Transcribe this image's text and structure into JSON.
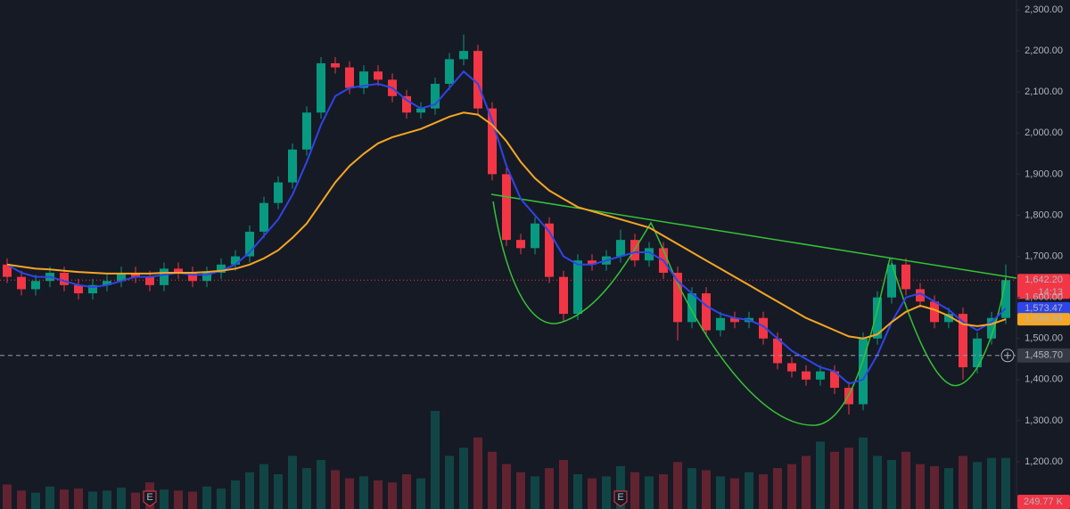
{
  "chart_data": {
    "type": "candlestick",
    "open": [
      1680,
      1650,
      1620,
      1640,
      1660,
      1630,
      1610,
      1630,
      1640,
      1660,
      1650,
      1630,
      1670,
      1660,
      1640,
      1660,
      1680,
      1700,
      1760,
      1830,
      1880,
      1960,
      2050,
      2170,
      2160,
      2110,
      2150,
      2130,
      2090,
      2050,
      2060,
      2120,
      2180,
      2200,
      2060,
      1900,
      1740,
      1720,
      1780,
      1650,
      1560,
      1690,
      1680,
      1700,
      1740,
      1690,
      1720,
      1660,
      1540,
      1610,
      1520,
      1550,
      1540,
      1550,
      1500,
      1440,
      1420,
      1400,
      1420,
      1380,
      1340,
      1500,
      1600,
      1680,
      1620,
      1590,
      1540,
      1560,
      1430,
      1500,
      1550
    ],
    "high": [
      1695,
      1665,
      1655,
      1675,
      1675,
      1645,
      1645,
      1655,
      1675,
      1675,
      1665,
      1685,
      1685,
      1675,
      1675,
      1695,
      1715,
      1775,
      1845,
      1895,
      1975,
      2065,
      2185,
      2185,
      2175,
      2165,
      2165,
      2145,
      2105,
      2075,
      2135,
      2195,
      2240,
      2215,
      2075,
      1915,
      1755,
      1795,
      1795,
      1665,
      1705,
      1705,
      1715,
      1765,
      1755,
      1735,
      1735,
      1675,
      1625,
      1625,
      1565,
      1565,
      1565,
      1565,
      1515,
      1455,
      1435,
      1435,
      1435,
      1395,
      1515,
      1615,
      1695,
      1695,
      1635,
      1605,
      1575,
      1575,
      1515,
      1565,
      1680
    ],
    "low": [
      1635,
      1605,
      1605,
      1625,
      1615,
      1595,
      1595,
      1615,
      1625,
      1635,
      1615,
      1615,
      1645,
      1625,
      1625,
      1645,
      1665,
      1685,
      1745,
      1815,
      1865,
      1945,
      2035,
      2145,
      2095,
      2095,
      2115,
      2075,
      2035,
      2035,
      2045,
      2105,
      2165,
      2045,
      1885,
      1725,
      1705,
      1705,
      1635,
      1540,
      1545,
      1665,
      1665,
      1685,
      1675,
      1675,
      1645,
      1495,
      1525,
      1505,
      1505,
      1525,
      1525,
      1485,
      1425,
      1405,
      1385,
      1385,
      1365,
      1315,
      1325,
      1485,
      1585,
      1605,
      1575,
      1525,
      1525,
      1400,
      1415,
      1485,
      1535
    ],
    "close": [
      1650,
      1620,
      1640,
      1660,
      1630,
      1610,
      1630,
      1640,
      1660,
      1650,
      1630,
      1670,
      1660,
      1640,
      1660,
      1680,
      1700,
      1760,
      1830,
      1880,
      1960,
      2050,
      2170,
      2160,
      2110,
      2150,
      2130,
      2090,
      2050,
      2060,
      2120,
      2180,
      2200,
      2060,
      1900,
      1740,
      1720,
      1780,
      1650,
      1560,
      1690,
      1680,
      1700,
      1740,
      1690,
      1720,
      1660,
      1540,
      1610,
      1520,
      1550,
      1540,
      1550,
      1500,
      1440,
      1420,
      1400,
      1420,
      1380,
      1340,
      1500,
      1600,
      1680,
      1620,
      1590,
      1540,
      1560,
      1430,
      1500,
      1550,
      1642.2
    ],
    "volume": [
      120000,
      90000,
      80000,
      110000,
      95000,
      100000,
      85000,
      90000,
      105000,
      80000,
      130000,
      95000,
      90000,
      85000,
      110000,
      100000,
      140000,
      180000,
      220000,
      170000,
      260000,
      200000,
      240000,
      190000,
      150000,
      160000,
      140000,
      130000,
      170000,
      150000,
      480000,
      260000,
      300000,
      350000,
      280000,
      220000,
      180000,
      160000,
      200000,
      240000,
      170000,
      150000,
      160000,
      210000,
      180000,
      160000,
      170000,
      230000,
      200000,
      190000,
      160000,
      150000,
      180000,
      170000,
      200000,
      220000,
      260000,
      330000,
      280000,
      300000,
      350000,
      260000,
      240000,
      280000,
      220000,
      210000,
      200000,
      260000,
      230000,
      250000,
      249770
    ],
    "volume_last_label": "249.77 K",
    "last_price_label": "1,642.20",
    "countdown": "14:13",
    "up_color": "#089981",
    "down_color": "#f23645",
    "series": [
      {
        "color": "#2f45e8",
        "last_label": "1,573.47",
        "values": [
          1680,
          1660,
          1650,
          1650,
          1640,
          1630,
          1625,
          1630,
          1640,
          1650,
          1650,
          1655,
          1660,
          1655,
          1655,
          1665,
          1680,
          1710,
          1750,
          1790,
          1850,
          1930,
          2020,
          2090,
          2110,
          2115,
          2120,
          2110,
          2080,
          2060,
          2070,
          2110,
          2150,
          2120,
          2030,
          1920,
          1840,
          1800,
          1760,
          1700,
          1680,
          1680,
          1690,
          1700,
          1710,
          1710,
          1690,
          1640,
          1610,
          1580,
          1560,
          1550,
          1545,
          1530,
          1500,
          1470,
          1450,
          1430,
          1420,
          1390,
          1400,
          1460,
          1540,
          1600,
          1610,
          1590,
          1570,
          1540,
          1520,
          1540,
          1573.47
        ]
      },
      {
        "color": "#f5a623",
        "last_label": "1,546.99",
        "values": [
          1680,
          1675,
          1670,
          1668,
          1665,
          1662,
          1660,
          1658,
          1658,
          1658,
          1658,
          1660,
          1660,
          1660,
          1662,
          1665,
          1670,
          1680,
          1695,
          1715,
          1745,
          1780,
          1830,
          1880,
          1920,
          1950,
          1975,
          1990,
          2000,
          2010,
          2025,
          2040,
          2050,
          2045,
          2020,
          1980,
          1930,
          1890,
          1860,
          1840,
          1820,
          1810,
          1800,
          1790,
          1780,
          1770,
          1750,
          1730,
          1710,
          1690,
          1670,
          1650,
          1630,
          1610,
          1590,
          1570,
          1550,
          1535,
          1520,
          1505,
          1500,
          1510,
          1540,
          1565,
          1580,
          1570,
          1555,
          1535,
          1530,
          1535,
          1546.99
        ]
      }
    ],
    "crosshair": {
      "value": 1458.7,
      "label": "1,458.70"
    },
    "events": [
      {
        "index": 10,
        "label": "E"
      },
      {
        "index": 43,
        "label": "E"
      }
    ],
    "ylim": [
      1085,
      2324
    ],
    "yticks": [
      {
        "value": 1200,
        "label": "1,200.00"
      },
      {
        "value": 1300,
        "label": "1,300.00"
      },
      {
        "value": 1400,
        "label": "1,400.00"
      },
      {
        "value": 1500,
        "label": "1,500.00"
      },
      {
        "value": 1600,
        "label": "1,600.00"
      },
      {
        "value": 1700,
        "label": "1,700.00"
      },
      {
        "value": 1800,
        "label": "1,800.00"
      },
      {
        "value": 1900,
        "label": "1,900.00"
      },
      {
        "value": 2000,
        "label": "2,000.00"
      },
      {
        "value": 2100,
        "label": "2,100.00"
      },
      {
        "value": 2200,
        "label": "2,200.00"
      },
      {
        "value": 2300,
        "label": "2,300.00"
      }
    ]
  }
}
